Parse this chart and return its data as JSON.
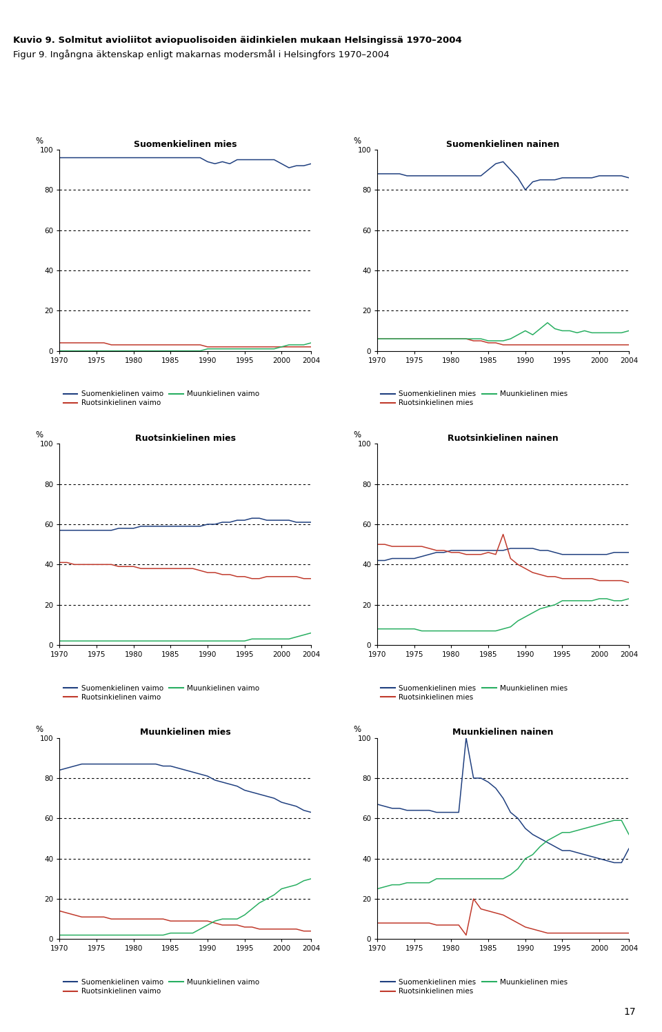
{
  "title_bold": "Kuvio 9. Solmitut avioliitot aviopuolisoiden äidinkielen mukaan Helsingissä 1970–2004",
  "title_normal": "Figur 9. Ingångna äktenskap enligt makarnas modersmål i Helsingfors 1970–2004",
  "header_color": "#E8A090",
  "years": [
    1970,
    1971,
    1972,
    1973,
    1974,
    1975,
    1976,
    1977,
    1978,
    1979,
    1980,
    1981,
    1982,
    1983,
    1984,
    1985,
    1986,
    1987,
    1988,
    1989,
    1990,
    1991,
    1992,
    1993,
    1994,
    1995,
    1996,
    1997,
    1998,
    1999,
    2000,
    2001,
    2002,
    2003,
    2004
  ],
  "plots": [
    {
      "title": "Suomenkielinen mies",
      "legend_labels": [
        "Suomenkielinen vaimo",
        "Ruotsinkielinen vaimo",
        "Muunkielinen vaimo"
      ],
      "series": [
        [
          96,
          96,
          96,
          96,
          96,
          96,
          96,
          96,
          96,
          96,
          96,
          96,
          96,
          96,
          96,
          96,
          96,
          96,
          96,
          96,
          94,
          93,
          94,
          93,
          95,
          95,
          95,
          95,
          95,
          95,
          93,
          91,
          92,
          92,
          93
        ],
        [
          4,
          4,
          4,
          4,
          4,
          4,
          4,
          3,
          3,
          3,
          3,
          3,
          3,
          3,
          3,
          3,
          3,
          3,
          3,
          3,
          2,
          2,
          2,
          2,
          2,
          2,
          2,
          2,
          2,
          2,
          2,
          2,
          2,
          2,
          2
        ],
        [
          0,
          0,
          0,
          0,
          0,
          0,
          0,
          0,
          0,
          0,
          0,
          0,
          0,
          0,
          0,
          0,
          0,
          0,
          0,
          0,
          1,
          1,
          1,
          1,
          1,
          1,
          1,
          1,
          1,
          1,
          2,
          3,
          3,
          3,
          4
        ]
      ],
      "colors": [
        "#1F3F7F",
        "#C0392B",
        "#27AE60"
      ]
    },
    {
      "title": "Suomenkielinen nainen",
      "legend_labels": [
        "Suomenkielinen mies",
        "Ruotsinkielinen mies",
        "Muunkielinen mies"
      ],
      "series": [
        [
          88,
          88,
          88,
          88,
          87,
          87,
          87,
          87,
          87,
          87,
          87,
          87,
          87,
          87,
          87,
          90,
          93,
          94,
          90,
          86,
          80,
          84,
          85,
          85,
          85,
          86,
          86,
          86,
          86,
          86,
          87,
          87,
          87,
          87,
          86
        ],
        [
          6,
          6,
          6,
          6,
          6,
          6,
          6,
          6,
          6,
          6,
          6,
          6,
          6,
          5,
          5,
          4,
          4,
          3,
          3,
          3,
          3,
          3,
          3,
          3,
          3,
          3,
          3,
          3,
          3,
          3,
          3,
          3,
          3,
          3,
          3
        ],
        [
          6,
          6,
          6,
          6,
          6,
          6,
          6,
          6,
          6,
          6,
          6,
          6,
          6,
          6,
          6,
          5,
          5,
          5,
          6,
          8,
          10,
          8,
          11,
          14,
          11,
          10,
          10,
          9,
          10,
          9,
          9,
          9,
          9,
          9,
          10
        ]
      ],
      "colors": [
        "#1F3F7F",
        "#C0392B",
        "#27AE60"
      ]
    },
    {
      "title": "Ruotsinkielinen mies",
      "legend_labels": [
        "Suomenkielinen vaimo",
        "Ruotsinkielinen vaimo",
        "Muunkielinen vaimo"
      ],
      "series": [
        [
          57,
          57,
          57,
          57,
          57,
          57,
          57,
          57,
          58,
          58,
          58,
          59,
          59,
          59,
          59,
          59,
          59,
          59,
          59,
          59,
          60,
          60,
          61,
          61,
          62,
          62,
          63,
          63,
          62,
          62,
          62,
          62,
          61,
          61,
          61
        ],
        [
          41,
          41,
          40,
          40,
          40,
          40,
          40,
          40,
          39,
          39,
          39,
          38,
          38,
          38,
          38,
          38,
          38,
          38,
          38,
          37,
          36,
          36,
          35,
          35,
          34,
          34,
          33,
          33,
          34,
          34,
          34,
          34,
          34,
          33,
          33
        ],
        [
          2,
          2,
          2,
          2,
          2,
          2,
          2,
          2,
          2,
          2,
          2,
          2,
          2,
          2,
          2,
          2,
          2,
          2,
          2,
          2,
          2,
          2,
          2,
          2,
          2,
          2,
          3,
          3,
          3,
          3,
          3,
          3,
          4,
          5,
          6
        ]
      ],
      "colors": [
        "#1F3F7F",
        "#C0392B",
        "#27AE60"
      ]
    },
    {
      "title": "Ruotsinkielinen nainen",
      "legend_labels": [
        "Suomenkielinen mies",
        "Ruotsinkielinen mies",
        "Muunkielinen mies"
      ],
      "series": [
        [
          42,
          42,
          43,
          43,
          43,
          43,
          44,
          45,
          46,
          46,
          47,
          47,
          47,
          47,
          47,
          47,
          47,
          47,
          48,
          48,
          48,
          48,
          47,
          47,
          46,
          45,
          45,
          45,
          45,
          45,
          45,
          45,
          46,
          46,
          46
        ],
        [
          50,
          50,
          49,
          49,
          49,
          49,
          49,
          48,
          47,
          47,
          46,
          46,
          45,
          45,
          45,
          46,
          45,
          55,
          43,
          40,
          38,
          36,
          35,
          34,
          34,
          33,
          33,
          33,
          33,
          33,
          32,
          32,
          32,
          32,
          31
        ],
        [
          8,
          8,
          8,
          8,
          8,
          8,
          7,
          7,
          7,
          7,
          7,
          7,
          7,
          7,
          7,
          7,
          7,
          8,
          9,
          12,
          14,
          16,
          18,
          19,
          20,
          22,
          22,
          22,
          22,
          22,
          23,
          23,
          22,
          22,
          23
        ]
      ],
      "colors": [
        "#1F3F7F",
        "#C0392B",
        "#27AE60"
      ]
    },
    {
      "title": "Muunkielinen mies",
      "legend_labels": [
        "Suomenkielinen vaimo",
        "Ruotsinkielinen vaimo",
        "Muunkielinen vaimo"
      ],
      "series": [
        [
          84,
          85,
          86,
          87,
          87,
          87,
          87,
          87,
          87,
          87,
          87,
          87,
          87,
          87,
          86,
          86,
          85,
          84,
          83,
          82,
          81,
          79,
          78,
          77,
          76,
          74,
          73,
          72,
          71,
          70,
          68,
          67,
          66,
          64,
          63
        ],
        [
          14,
          13,
          12,
          11,
          11,
          11,
          11,
          10,
          10,
          10,
          10,
          10,
          10,
          10,
          10,
          9,
          9,
          9,
          9,
          9,
          9,
          8,
          7,
          7,
          7,
          6,
          6,
          5,
          5,
          5,
          5,
          5,
          5,
          4,
          4
        ],
        [
          2,
          2,
          2,
          2,
          2,
          2,
          2,
          2,
          2,
          2,
          2,
          2,
          2,
          2,
          2,
          3,
          3,
          3,
          3,
          5,
          7,
          9,
          10,
          10,
          10,
          12,
          15,
          18,
          20,
          22,
          25,
          26,
          27,
          29,
          30
        ]
      ],
      "colors": [
        "#1F3F7F",
        "#C0392B",
        "#27AE60"
      ]
    },
    {
      "title": "Muunkielinen nainen",
      "legend_labels": [
        "Suomenkielinen mies",
        "Ruotsinkielinen mies",
        "Muunkielinen mies"
      ],
      "series": [
        [
          67,
          66,
          65,
          65,
          64,
          64,
          64,
          64,
          63,
          63,
          63,
          63,
          100,
          80,
          80,
          78,
          75,
          70,
          63,
          60,
          55,
          52,
          50,
          48,
          46,
          44,
          44,
          43,
          42,
          41,
          40,
          39,
          38,
          38,
          45
        ],
        [
          8,
          8,
          8,
          8,
          8,
          8,
          8,
          8,
          7,
          7,
          7,
          7,
          2,
          20,
          15,
          14,
          13,
          12,
          10,
          8,
          6,
          5,
          4,
          3,
          3,
          3,
          3,
          3,
          3,
          3,
          3,
          3,
          3,
          3,
          3
        ],
        [
          25,
          26,
          27,
          27,
          28,
          28,
          28,
          28,
          30,
          30,
          30,
          30,
          30,
          30,
          30,
          30,
          30,
          30,
          32,
          35,
          40,
          42,
          46,
          49,
          51,
          53,
          53,
          54,
          55,
          56,
          57,
          58,
          59,
          59,
          52
        ]
      ],
      "colors": [
        "#1F3F7F",
        "#C0392B",
        "#27AE60"
      ]
    }
  ],
  "page_number": "17"
}
